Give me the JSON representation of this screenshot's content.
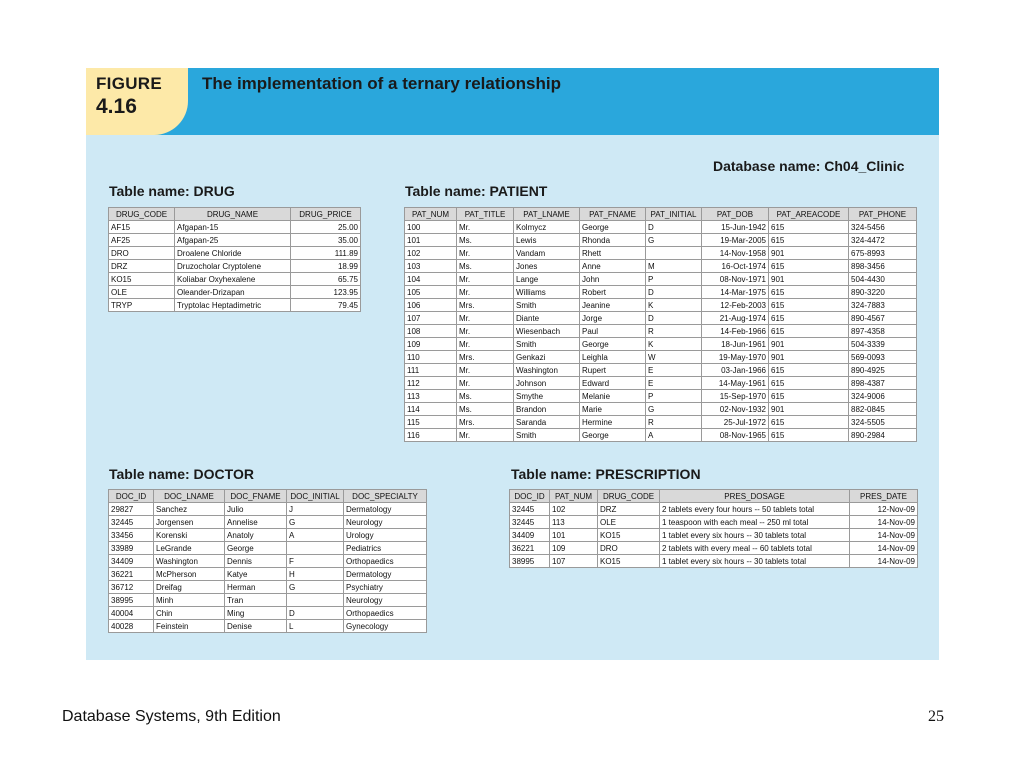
{
  "figure": {
    "label": "FIGURE",
    "number": "4.16",
    "title": "The implementation of a ternary relationship"
  },
  "database_name": "Database name: Ch04_Clinic",
  "drug": {
    "title": "Table name: DRUG",
    "headers": [
      "DRUG_CODE",
      "DRUG_NAME",
      "DRUG_PRICE"
    ],
    "rows": [
      [
        "AF15",
        "Afgapan-15",
        "25.00"
      ],
      [
        "AF25",
        "Afgapan-25",
        "35.00"
      ],
      [
        "DRO",
        "Droalene Chloride",
        "111.89"
      ],
      [
        "DRZ",
        "Druzocholar Cryptolene",
        "18.99"
      ],
      [
        "KO15",
        "Koliabar Oxyhexalene",
        "65.75"
      ],
      [
        "OLE",
        "Oleander-Drizapan",
        "123.95"
      ],
      [
        "TRYP",
        "Tryptolac Heptadimetric",
        "79.45"
      ]
    ]
  },
  "patient": {
    "title": "Table name: PATIENT",
    "headers": [
      "PAT_NUM",
      "PAT_TITLE",
      "PAT_LNAME",
      "PAT_FNAME",
      "PAT_INITIAL",
      "PAT_DOB",
      "PAT_AREACODE",
      "PAT_PHONE"
    ],
    "rows": [
      [
        "100",
        "Mr.",
        "Kolmycz",
        "George",
        "D",
        "15-Jun-1942",
        "615",
        "324-5456"
      ],
      [
        "101",
        "Ms.",
        "Lewis",
        "Rhonda",
        "G",
        "19-Mar-2005",
        "615",
        "324-4472"
      ],
      [
        "102",
        "Mr.",
        "Vandam",
        "Rhett",
        "",
        "14-Nov-1958",
        "901",
        "675-8993"
      ],
      [
        "103",
        "Ms.",
        "Jones",
        "Anne",
        "M",
        "16-Oct-1974",
        "615",
        "898-3456"
      ],
      [
        "104",
        "Mr.",
        "Lange",
        "John",
        "P",
        "08-Nov-1971",
        "901",
        "504-4430"
      ],
      [
        "105",
        "Mr.",
        "Williams",
        "Robert",
        "D",
        "14-Mar-1975",
        "615",
        "890-3220"
      ],
      [
        "106",
        "Mrs.",
        "Smith",
        "Jeanine",
        "K",
        "12-Feb-2003",
        "615",
        "324-7883"
      ],
      [
        "107",
        "Mr.",
        "Diante",
        "Jorge",
        "D",
        "21-Aug-1974",
        "615",
        "890-4567"
      ],
      [
        "108",
        "Mr.",
        "Wiesenbach",
        "Paul",
        "R",
        "14-Feb-1966",
        "615",
        "897-4358"
      ],
      [
        "109",
        "Mr.",
        "Smith",
        "George",
        "K",
        "18-Jun-1961",
        "901",
        "504-3339"
      ],
      [
        "110",
        "Mrs.",
        "Genkazi",
        "Leighla",
        "W",
        "19-May-1970",
        "901",
        "569-0093"
      ],
      [
        "111",
        "Mr.",
        "Washington",
        "Rupert",
        "E",
        "03-Jan-1966",
        "615",
        "890-4925"
      ],
      [
        "112",
        "Mr.",
        "Johnson",
        "Edward",
        "E",
        "14-May-1961",
        "615",
        "898-4387"
      ],
      [
        "113",
        "Ms.",
        "Smythe",
        "Melanie",
        "P",
        "15-Sep-1970",
        "615",
        "324-9006"
      ],
      [
        "114",
        "Ms.",
        "Brandon",
        "Marie",
        "G",
        "02-Nov-1932",
        "901",
        "882-0845"
      ],
      [
        "115",
        "Mrs.",
        "Saranda",
        "Hermine",
        "R",
        "25-Jul-1972",
        "615",
        "324-5505"
      ],
      [
        "116",
        "Mr.",
        "Smith",
        "George",
        "A",
        "08-Nov-1965",
        "615",
        "890-2984"
      ]
    ]
  },
  "doctor": {
    "title": "Table name: DOCTOR",
    "headers": [
      "DOC_ID",
      "DOC_LNAME",
      "DOC_FNAME",
      "DOC_INITIAL",
      "DOC_SPECIALTY"
    ],
    "rows": [
      [
        "29827",
        "Sanchez",
        "Julio",
        "J",
        "Dermatology"
      ],
      [
        "32445",
        "Jorgensen",
        "Annelise",
        "G",
        "Neurology"
      ],
      [
        "33456",
        "Korenski",
        "Anatoly",
        "A",
        "Urology"
      ],
      [
        "33989",
        "LeGrande",
        "George",
        "",
        "Pediatrics"
      ],
      [
        "34409",
        "Washington",
        "Dennis",
        "F",
        "Orthopaedics"
      ],
      [
        "36221",
        "McPherson",
        "Katye",
        "H",
        "Dermatology"
      ],
      [
        "36712",
        "Dreifag",
        "Herman",
        "G",
        "Psychiatry"
      ],
      [
        "38995",
        "Minh",
        "Tran",
        "",
        "Neurology"
      ],
      [
        "40004",
        "Chin",
        "Ming",
        "D",
        "Orthopaedics"
      ],
      [
        "40028",
        "Feinstein",
        "Denise",
        "L",
        "Gynecology"
      ]
    ]
  },
  "prescription": {
    "title": "Table name: PRESCRIPTION",
    "headers": [
      "DOC_ID",
      "PAT_NUM",
      "DRUG_CODE",
      "PRES_DOSAGE",
      "PRES_DATE"
    ],
    "rows": [
      [
        "32445",
        "102",
        "DRZ",
        "2 tablets every four hours -- 50 tablets total",
        "12-Nov-09"
      ],
      [
        "32445",
        "113",
        "OLE",
        "1 teaspoon with each meal -- 250 ml total",
        "14-Nov-09"
      ],
      [
        "34409",
        "101",
        "KO15",
        "1 tablet every six hours -- 30 tablets total",
        "14-Nov-09"
      ],
      [
        "36221",
        "109",
        "DRO",
        "2 tablets with every meal -- 60 tablets total",
        "14-Nov-09"
      ],
      [
        "38995",
        "107",
        "KO15",
        "1 tablet every six hours -- 30 tablets total",
        "14-Nov-09"
      ]
    ]
  },
  "footer": {
    "left": "Database Systems, 9th Edition",
    "page_number": "25"
  },
  "colors": {
    "panel_background": "#cfe9f5",
    "header_band": "#2aa7dc",
    "figure_badge": "#fde9a8",
    "table_header": "#d9d9d9"
  }
}
